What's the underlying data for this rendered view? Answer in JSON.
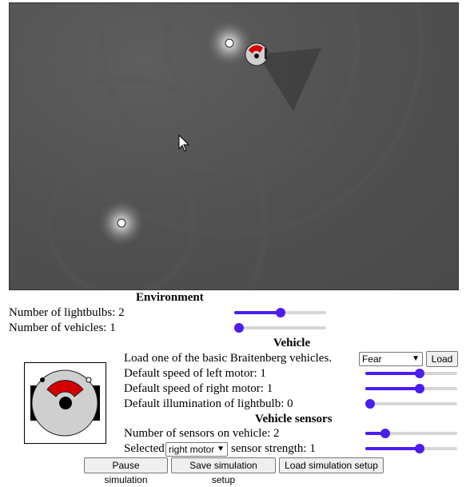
{
  "environment": {
    "title": "Environment",
    "lightbulbs_label": "Number of lightbulbs: 2",
    "lightbulbs_value": 2,
    "lightbulbs_fraction": 0.5,
    "vehicles_label": "Number of vehicles: 1",
    "vehicles_value": 1,
    "vehicles_fraction": 0.0
  },
  "vehicle": {
    "title": "Vehicle",
    "load_label": "Load one of the basic Braitenberg vehicles.",
    "preset_selected": "Fear",
    "load_button": "Load",
    "left_motor_label": "Default speed of left motor: 1",
    "left_motor_fraction": 0.6,
    "right_motor_label": "Default speed of right motor: 1",
    "right_motor_fraction": 0.6,
    "illumination_label": "Default illumination of lightbulb: 0",
    "illumination_fraction": 0.0
  },
  "sensors": {
    "title": "Vehicle sensors",
    "count_label": "Number of sensors on vehicle: 2",
    "count_fraction": 0.18,
    "selected_prefix": "Selected",
    "selected_motor": "right motor",
    "strength_label": "sensor strength: 1",
    "strength_fraction": 0.6
  },
  "buttons": {
    "pause": "Pause simulation",
    "save": "Save simulation setup",
    "load": "Load simulation setup"
  },
  "colors": {
    "slider_accent": "#4c1cf0",
    "vehicle_red": "#d40000",
    "arena_bg": "#505050"
  }
}
